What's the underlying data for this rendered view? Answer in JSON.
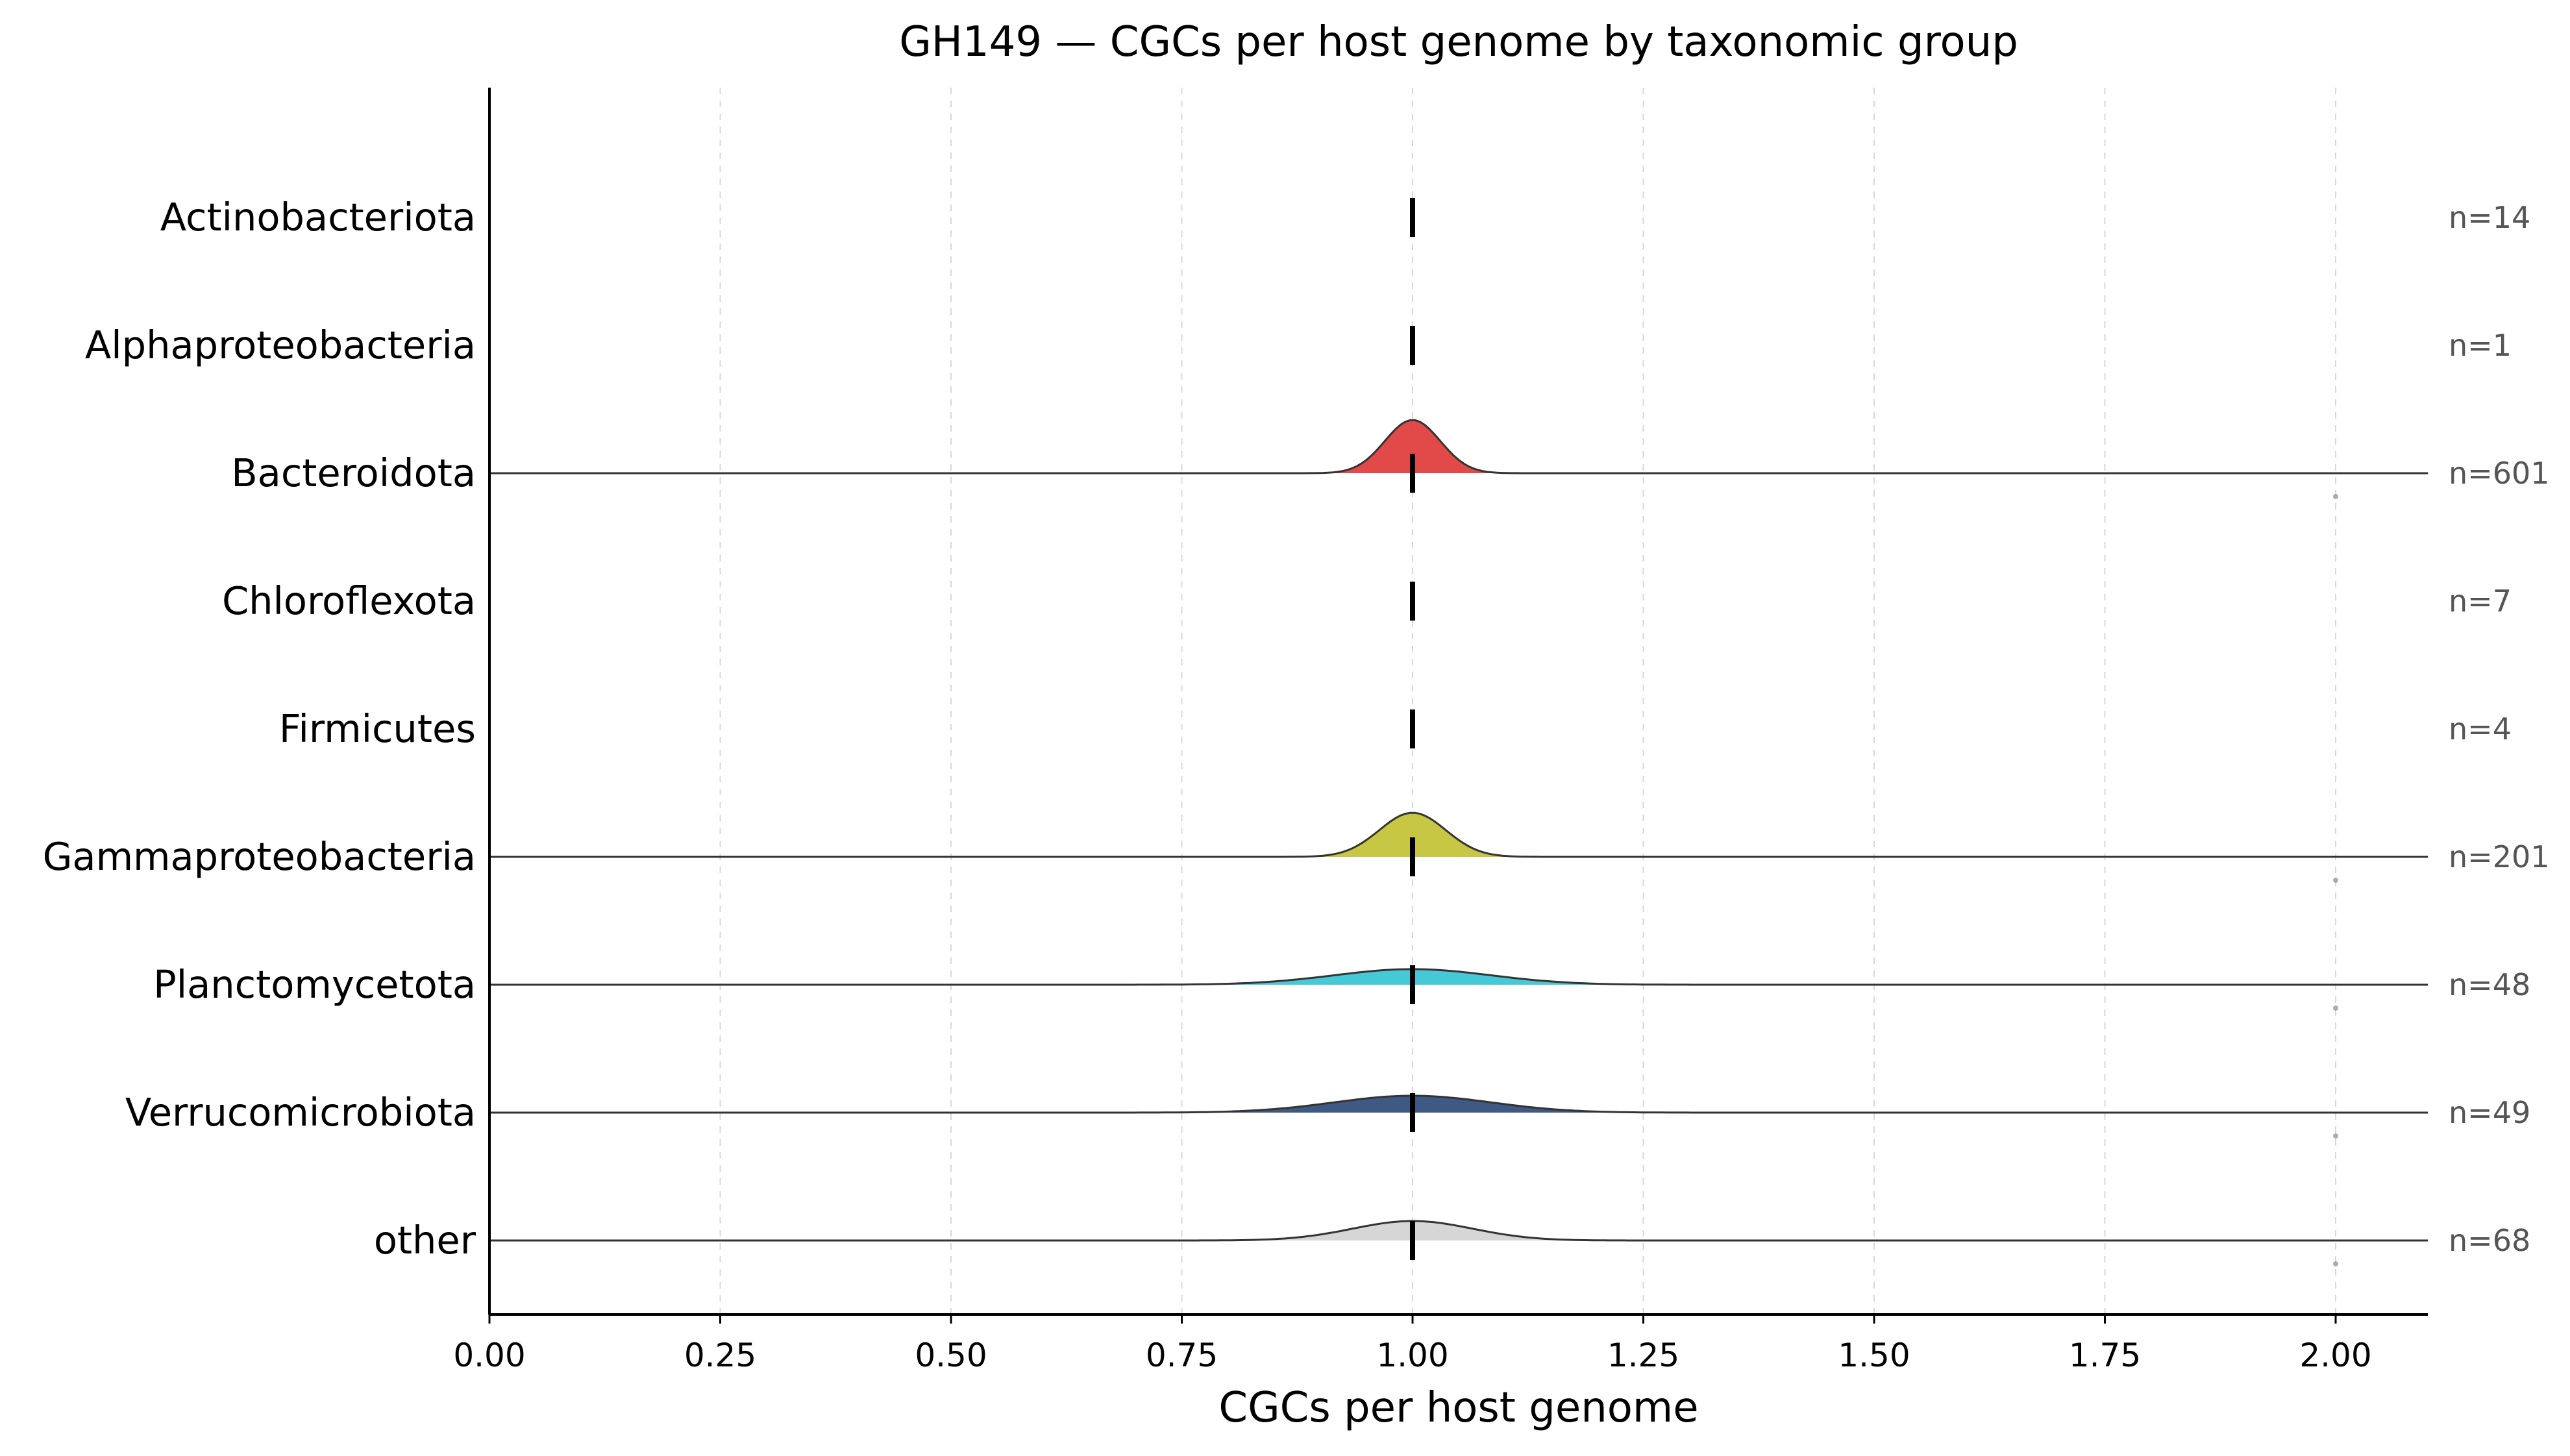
{
  "chart_data": {
    "type": "ridgeline",
    "title": "GH149 — CGCs per host genome by taxonomic group",
    "xlabel": "CGCs per host genome",
    "ylabel": "",
    "xlim": [
      0,
      2.1
    ],
    "xticks": [
      "0.00",
      "0.25",
      "0.50",
      "0.75",
      "1.00",
      "1.25",
      "1.50",
      "1.75",
      "2.00"
    ],
    "xtick_values": [
      0,
      0.25,
      0.5,
      0.75,
      1.0,
      1.25,
      1.5,
      1.75,
      2.0
    ],
    "grid": "vertical dashed",
    "groups": [
      {
        "label": "Actinobacteriota",
        "n_label": "n=14",
        "n": 14,
        "median": 1.0,
        "density_peak": 0,
        "density_sd": 0,
        "color": null,
        "outliers": []
      },
      {
        "label": "Alphaproteobacteria",
        "n_label": "n=1",
        "n": 1,
        "median": 1.0,
        "density_peak": 0,
        "density_sd": 0,
        "color": null,
        "outliers": []
      },
      {
        "label": "Bacteroidota",
        "n_label": "n=601",
        "n": 601,
        "median": 1.0,
        "density_peak": 0.41,
        "density_sd": 0.03,
        "color": "#e04040",
        "outliers": [
          2.0
        ]
      },
      {
        "label": "Chloroflexota",
        "n_label": "n=7",
        "n": 7,
        "median": 1.0,
        "density_peak": 0,
        "density_sd": 0,
        "color": null,
        "outliers": []
      },
      {
        "label": "Firmicutes",
        "n_label": "n=4",
        "n": 4,
        "median": 1.0,
        "density_peak": 0,
        "density_sd": 0,
        "color": null,
        "outliers": []
      },
      {
        "label": "Gammaproteobacteria",
        "n_label": "n=201",
        "n": 201,
        "median": 1.0,
        "density_peak": 0.34,
        "density_sd": 0.036,
        "color": "#c4c43a",
        "outliers": [
          2.0
        ]
      },
      {
        "label": "Planctomycetota",
        "n_label": "n=48",
        "n": 48,
        "median": 1.0,
        "density_peak": 0.12,
        "density_sd": 0.085,
        "color": "#3cc6d4",
        "outliers": [
          2.0
        ]
      },
      {
        "label": "Verrucomicrobiota",
        "n_label": "n=49",
        "n": 49,
        "median": 1.0,
        "density_peak": 0.13,
        "density_sd": 0.085,
        "color": "#34507c",
        "outliers": [
          2.0
        ]
      },
      {
        "label": "other",
        "n_label": "n=68",
        "n": 68,
        "median": 1.0,
        "density_peak": 0.15,
        "density_sd": 0.065,
        "color": "#d4d4d4",
        "outliers": [
          2.0
        ]
      }
    ]
  }
}
